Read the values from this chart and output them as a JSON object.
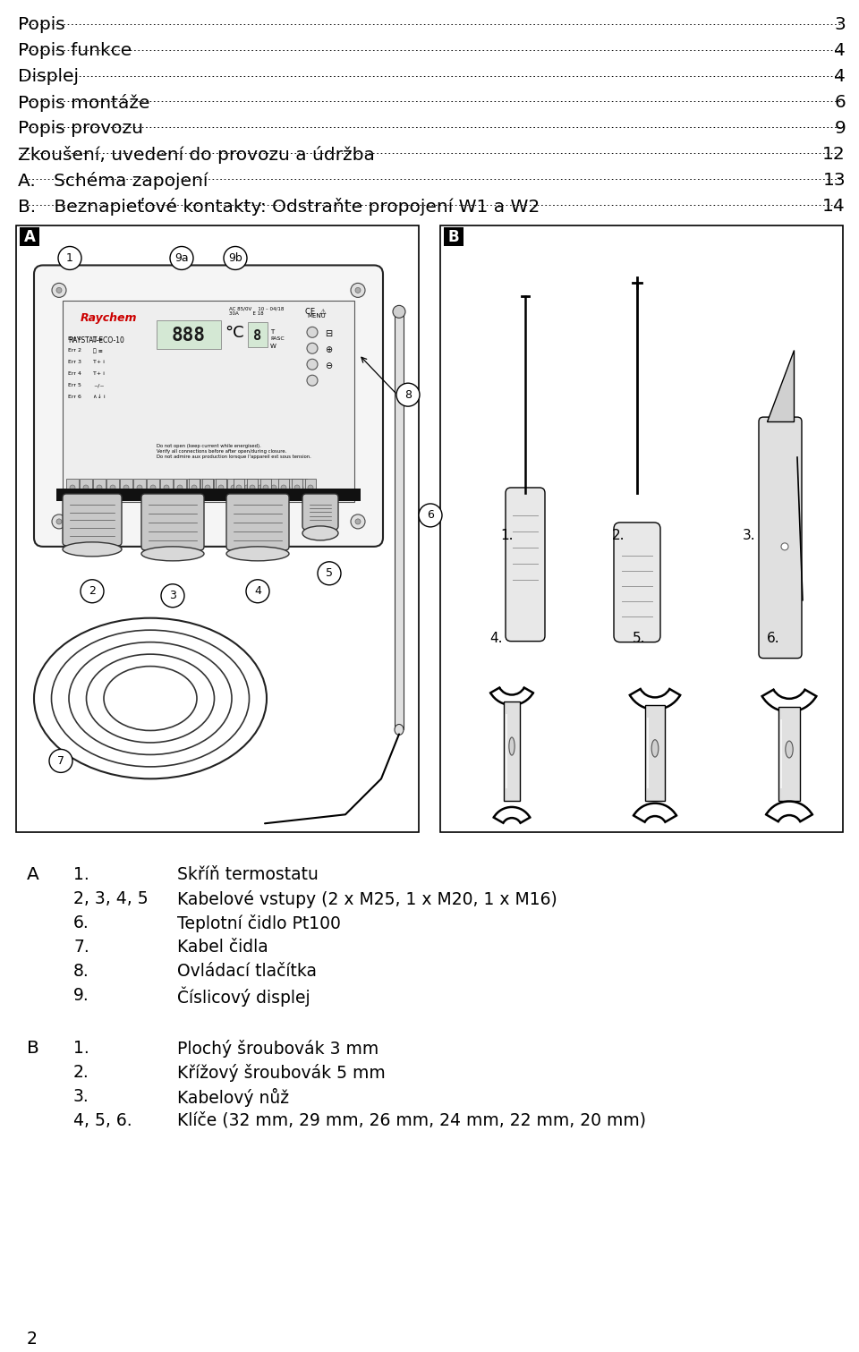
{
  "bg_color": "#ffffff",
  "text_color": "#000000",
  "toc_entries": [
    [
      "Popis",
      "3"
    ],
    [
      "Popis funkce",
      "4"
    ],
    [
      "Displej",
      "4"
    ],
    [
      "Popis montáže",
      "6"
    ],
    [
      "Popis provozu",
      "9"
    ],
    [
      "Zkoušení, uvedení do provozu a údržba",
      "12"
    ],
    [
      "A.  Schéma zapojení",
      "13"
    ],
    [
      "B.  Beznapieťové kontakty: Odstraňte propojení W1 a W2",
      "14"
    ]
  ],
  "legend_A": [
    [
      "1.",
      "Skříň termostatu"
    ],
    [
      "2, 3, 4, 5",
      "Kabelové vstupy (2 x M25, 1 x M20, 1 x M16)"
    ],
    [
      "6.",
      "Teplotní čidlo Pt100"
    ],
    [
      "7.",
      "Kabel čidla"
    ],
    [
      "8.",
      "Ovládací tlačítka"
    ],
    [
      "9.",
      "Číslicový displej"
    ]
  ],
  "legend_B": [
    [
      "1.",
      "Plochý šroubovák 3 mm"
    ],
    [
      "2.",
      "Křížový šroubovák 5 mm"
    ],
    [
      "3.",
      "Kabelový nůž"
    ],
    [
      "4, 5, 6.",
      "Klíče (32 mm, 29 mm, 26 mm, 24 mm, 22 mm, 20 mm)"
    ]
  ],
  "page_number": "2"
}
